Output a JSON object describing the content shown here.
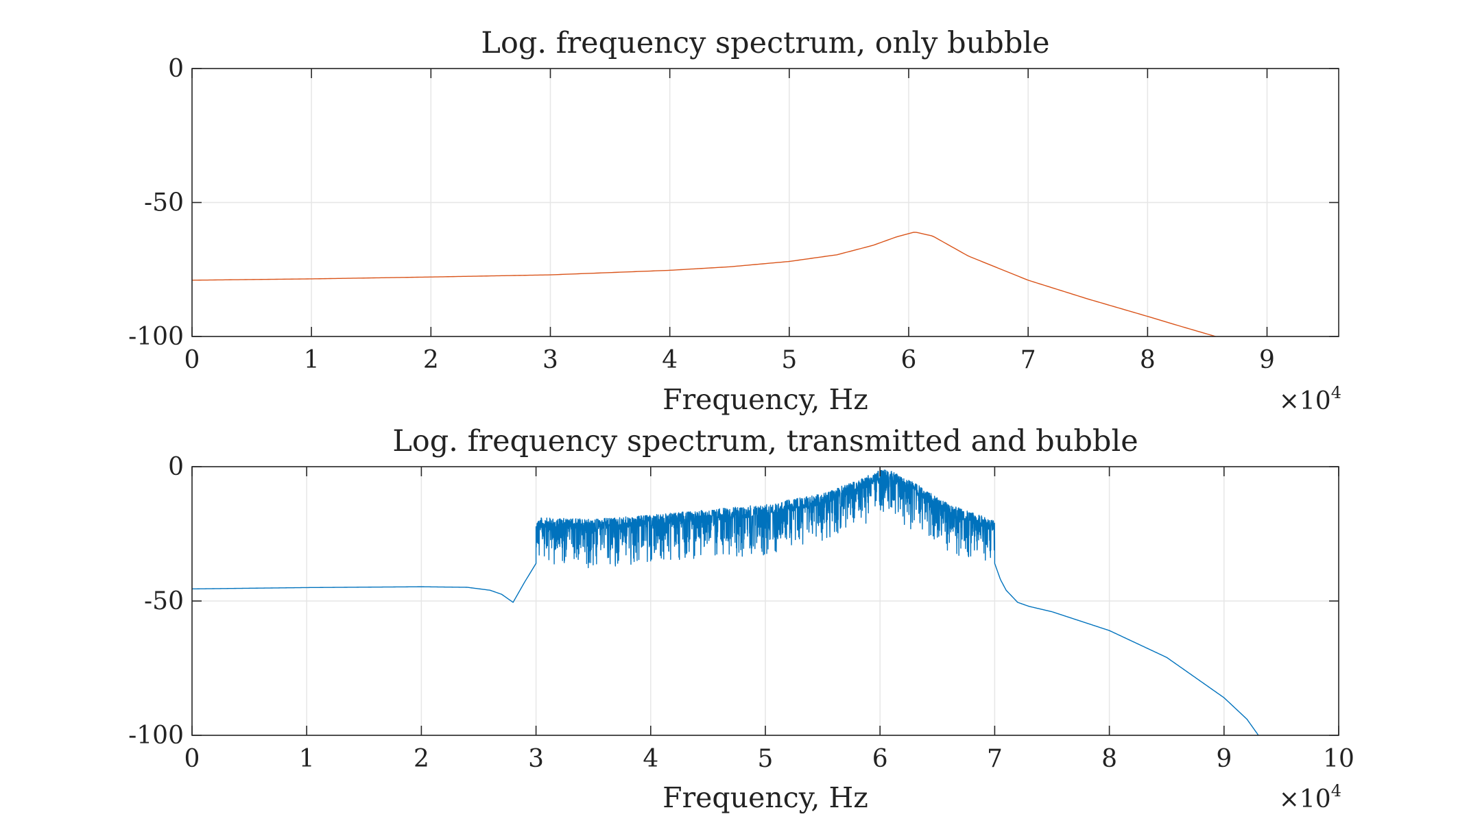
{
  "chart_data": [
    {
      "type": "line",
      "title": "Log. frequency spectrum, only bubble",
      "xlabel": "Frequency, Hz",
      "ylabel": "",
      "x_exponent_label": "×10",
      "x_exponent": "4",
      "xlim": [
        0,
        9.6
      ],
      "ylim": [
        -100,
        0
      ],
      "xticks": [
        0,
        1,
        2,
        3,
        4,
        5,
        6,
        7,
        8,
        9
      ],
      "xtick_labels": [
        "0",
        "1",
        "2",
        "3",
        "4",
        "5",
        "6",
        "7",
        "8",
        "9"
      ],
      "yticks": [
        0,
        -50,
        -100
      ],
      "ytick_labels": [
        "0",
        "-50",
        "-100"
      ],
      "grid": true,
      "series": [
        {
          "color": "#D95319",
          "x": [
            0,
            1,
            2,
            3,
            4,
            4.5,
            5,
            5.4,
            5.7,
            5.9,
            6.05,
            6.2,
            6.5,
            7,
            7.5,
            8,
            8.3,
            8.57
          ],
          "y": [
            -79,
            -78.5,
            -77.8,
            -77,
            -75.3,
            -74,
            -72,
            -69.5,
            -66,
            -62.8,
            -61,
            -62.5,
            -70,
            -79,
            -86,
            -92.5,
            -96.5,
            -100
          ]
        }
      ]
    },
    {
      "type": "line",
      "title": "Log. frequency spectrum, transmitted and bubble",
      "xlabel": "Frequency, Hz",
      "ylabel": "",
      "x_exponent_label": "×10",
      "x_exponent": "4",
      "xlim": [
        0,
        10
      ],
      "ylim": [
        -100,
        0
      ],
      "xticks": [
        0,
        1,
        2,
        3,
        4,
        5,
        6,
        7,
        8,
        9,
        10
      ],
      "xtick_labels": [
        "0",
        "1",
        "2",
        "3",
        "4",
        "5",
        "6",
        "7",
        "8",
        "9",
        "10"
      ],
      "yticks": [
        0,
        -50,
        -100
      ],
      "ytick_labels": [
        "0",
        "-50",
        "-100"
      ],
      "grid": true,
      "series": [
        {
          "color": "#0072BD",
          "smooth_left": {
            "x": [
              0,
              1,
              2,
              2.4,
              2.6,
              2.7,
              2.8,
              2.9,
              3.0
            ],
            "y": [
              -45.5,
              -45,
              -44.7,
              -44.9,
              -46,
              -47.5,
              -50.5,
              -43,
              -36
            ]
          },
          "noisy_band": {
            "x_start": 3.0,
            "x_end": 7.0,
            "envelope_x": [
              3.0,
              3.5,
              4.0,
              4.5,
              5.0,
              5.5,
              5.8,
              6.05,
              6.3,
              6.6,
              7.0
            ],
            "envelope_top_y": [
              -19,
              -19.5,
              -18,
              -16,
              -14,
              -10,
              -5,
              -0.5,
              -6,
              -14,
              -20
            ],
            "floor_y": [
              -30,
              -32,
              -30,
              -28,
              -27,
              -22,
              -17,
              -12,
              -18,
              -26,
              -32
            ],
            "min_spike_y": -38
          },
          "smooth_right": {
            "x": [
              7.0,
              7.05,
              7.1,
              7.2,
              7.3,
              7.5,
              8.0,
              8.5,
              9.0,
              9.2,
              9.3
            ],
            "y": [
              -36,
              -42,
              -46,
              -50.5,
              -52,
              -54,
              -61,
              -71,
              -86,
              -94,
              -100
            ]
          }
        }
      ]
    }
  ]
}
